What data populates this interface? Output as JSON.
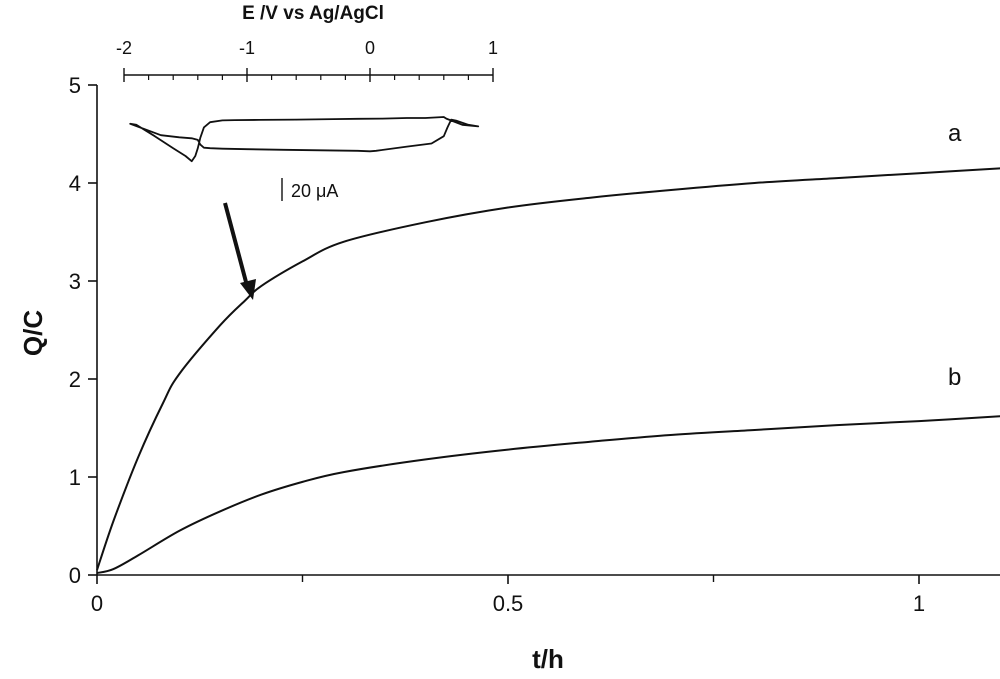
{
  "chart_data": [
    {
      "type": "line",
      "xlabel": "t/h",
      "ylabel": "Q/C",
      "xlim": [
        0,
        1.1
      ],
      "ylim": [
        0,
        5
      ],
      "x_ticks": [
        0,
        0.5,
        1
      ],
      "x_tick_labels": [
        "0",
        "0.5",
        "1"
      ],
      "x_minor_ticks": [
        0.25,
        0.75
      ],
      "y_ticks": [
        0,
        1,
        2,
        3,
        4,
        5
      ],
      "y_tick_labels": [
        "0",
        "1",
        "2",
        "3",
        "4",
        "5"
      ],
      "grid": false,
      "series": [
        {
          "name": "a",
          "x": [
            0,
            0.02,
            0.05,
            0.08,
            0.1,
            0.15,
            0.18,
            0.2,
            0.25,
            0.3,
            0.4,
            0.5,
            0.6,
            0.7,
            0.8,
            0.9,
            1.0,
            1.1
          ],
          "y": [
            0.05,
            0.55,
            1.2,
            1.75,
            2.05,
            2.55,
            2.8,
            2.95,
            3.2,
            3.4,
            3.6,
            3.75,
            3.85,
            3.93,
            4.0,
            4.05,
            4.1,
            4.15
          ]
        },
        {
          "name": "b",
          "x": [
            0,
            0.02,
            0.05,
            0.1,
            0.15,
            0.2,
            0.25,
            0.3,
            0.4,
            0.5,
            0.6,
            0.7,
            0.8,
            0.9,
            1.0,
            1.1
          ],
          "y": [
            0.02,
            0.06,
            0.2,
            0.45,
            0.65,
            0.82,
            0.95,
            1.05,
            1.18,
            1.28,
            1.36,
            1.43,
            1.48,
            1.53,
            1.57,
            1.62
          ]
        }
      ]
    },
    {
      "type": "line",
      "xlabel": "E /V vs Ag/AgCl",
      "xlim": [
        -2,
        1
      ],
      "x_ticks": [
        -2,
        -1,
        0,
        1
      ],
      "x_tick_labels": [
        "-2",
        "-1",
        "0",
        "1"
      ],
      "x_axis_position": "top",
      "scale_bar_label": "20 μA",
      "series": [
        {
          "name": "",
          "x": [
            0.6,
            0.45,
            0.3,
            0.1,
            -0.1,
            -0.3,
            -0.6,
            -0.9,
            -1.1,
            -1.2,
            -1.3,
            -1.35,
            -1.38,
            -1.4,
            -1.42,
            -1.45,
            -1.5,
            -1.6,
            -1.75,
            -1.9,
            -1.95,
            -1.7,
            -1.55,
            -1.45,
            -1.4,
            -1.38,
            -1.35,
            -1.3,
            -1.2,
            -1.0,
            -0.7,
            -0.4,
            -0.1,
            0.0,
            0.05,
            0.3,
            0.5,
            0.6,
            0.63,
            0.66,
            0.7,
            0.8,
            0.88,
            0.75,
            0.62,
            0.6
          ],
          "y": [
            2.5,
            2.3,
            2.3,
            2.2,
            2.15,
            2.1,
            2.0,
            1.95,
            1.9,
            1.85,
            1.5,
            0.5,
            -1.5,
            -3.5,
            -5.0,
            -6.0,
            -5.0,
            -3.5,
            -1.2,
            1.0,
            1.2,
            -1.0,
            -1.4,
            -1.6,
            -1.9,
            -2.8,
            -3.4,
            -3.5,
            -3.6,
            -3.7,
            -3.8,
            -3.9,
            -4.0,
            -4.1,
            -4.0,
            -3.2,
            -2.6,
            -1.2,
            0.5,
            2.0,
            1.8,
            1.0,
            0.7,
            1.0,
            2.2,
            2.5
          ]
        }
      ]
    }
  ],
  "annotations": {
    "curve_a_label": "a",
    "curve_b_label": "b"
  },
  "colors": {
    "line": "#111111",
    "background": "#ffffff"
  }
}
